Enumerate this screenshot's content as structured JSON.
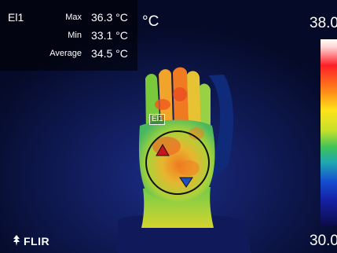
{
  "measurement": {
    "id": "El1",
    "max_label": "Max",
    "max_value": "36.3 °C",
    "min_label": "Min",
    "min_value": "33.1 °C",
    "avg_label": "Average",
    "avg_value": "34.5 °C"
  },
  "unit": "°C",
  "scale": {
    "top": "38.0",
    "bottom": "30.0"
  },
  "spot_label": "El1",
  "brand": "FLIR"
}
